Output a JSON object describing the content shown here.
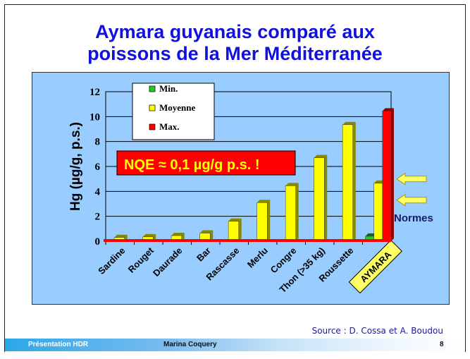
{
  "title_lines": [
    "Aymara guyanais comparé aux",
    "poissons de la Mer Méditerranée"
  ],
  "source": "Source : D. Cossa et A. Boudou",
  "footer": {
    "left": "Présentation HDR",
    "center": "Marina Coquery",
    "page": "8"
  },
  "annotation": "NQE ≈ 0,1 µg/g p.s. !",
  "normes_label": "Normes",
  "chart_data": {
    "type": "bar",
    "ylabel": "Hg (µg/g, p.s.)",
    "ylim": [
      0,
      12
    ],
    "yticks": [
      0,
      2,
      4,
      6,
      8,
      10,
      12
    ],
    "grid": true,
    "legend_position": "top-left",
    "categories": [
      "Sardine",
      "Rouget",
      "Daurade",
      "Bar",
      "Rascasse",
      "Merlu",
      "Congre",
      "Thon (>35 kg)",
      "Roussette",
      "AYMARA"
    ],
    "series": [
      {
        "name": "Min.",
        "color": "#22cc22",
        "values": [
          null,
          null,
          null,
          null,
          null,
          null,
          null,
          null,
          null,
          0.4
        ]
      },
      {
        "name": "Moyenne",
        "color": "#ffff00",
        "values": [
          0.3,
          0.35,
          0.45,
          0.65,
          1.6,
          3.1,
          4.45,
          6.7,
          9.35,
          4.65
        ]
      },
      {
        "name": "Max.",
        "color": "#ff0000",
        "values": [
          null,
          null,
          null,
          null,
          null,
          null,
          null,
          null,
          null,
          10.45
        ]
      }
    ],
    "norm_arrows": [
      5,
      3.3
    ]
  }
}
